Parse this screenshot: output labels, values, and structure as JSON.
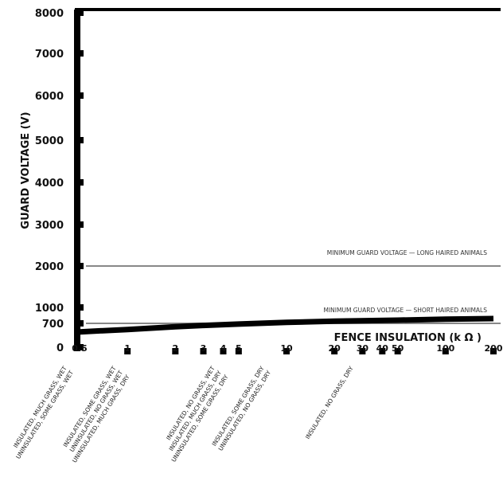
{
  "chart_data": {
    "type": "line",
    "title": "",
    "ylabel": "GUARD VOLTAGE (V)",
    "xlabel": "FENCE INSULATION (k Ω )",
    "xscale": "log",
    "xlim": [
      0.5,
      200
    ],
    "ylim": [
      0,
      8000
    ],
    "y_ticks": [
      "8000",
      "7000",
      "6000",
      "5000",
      "4000",
      "3000",
      "2000",
      "1000",
      "700",
      "0"
    ],
    "y_tick_values": [
      8000,
      7000,
      6000,
      5000,
      4000,
      3000,
      2000,
      1000,
      700,
      0
    ],
    "x_ticks": [
      "0.5",
      "1",
      "2",
      "3",
      "4",
      "5",
      "10",
      "20",
      "30",
      "40",
      "50",
      "100",
      "200"
    ],
    "x_tick_values": [
      0.5,
      1,
      2,
      3,
      4,
      5,
      10,
      20,
      30,
      40,
      50,
      100,
      200
    ],
    "series": [
      {
        "x": [
          0.5,
          1,
          2,
          3,
          5,
          10,
          20,
          50,
          100,
          200
        ],
        "y": [
          450,
          520,
          600,
          640,
          680,
          720,
          740,
          760,
          780,
          790
        ]
      }
    ],
    "reference_lines": [
      {
        "label": "MINIMUM GUARD VOLTAGE — LONG HAIRED ANIMALS",
        "y": 2000
      },
      {
        "label": "MINIMUM GUARD VOLTAGE — SHORT HAIRED ANIMALS",
        "y": 700
      }
    ],
    "condition_labels": [
      {
        "x": 0.5,
        "lines": [
          "INSULATED, MUCH GRASS, WET",
          "UNINSULATED, SOME GRASS, WET"
        ]
      },
      {
        "x": 1,
        "lines": [
          "INSULATED, SOME GRASS, WET",
          "UNINSULATED, NO GRASS, WET",
          "UNINSULATED, MUCH GRASS, DRY"
        ]
      },
      {
        "x": 4,
        "lines": [
          "INSULATED, NO GRASS, WET",
          "INSULATED, MUCH GRASS, DRY",
          "UNINSULATED, SOME GRASS, DRY"
        ]
      },
      {
        "x": 10,
        "lines": [
          "INSULATED, SOME GRASS, DRY",
          "UNINSULATED, NO GRASS, DRY"
        ]
      },
      {
        "x": 30,
        "lines": [
          "INSULATED, NO GRASS, DRY"
        ]
      }
    ],
    "colors": {
      "axis": "#000000",
      "curve": "#000000",
      "reference": "#888888"
    }
  }
}
